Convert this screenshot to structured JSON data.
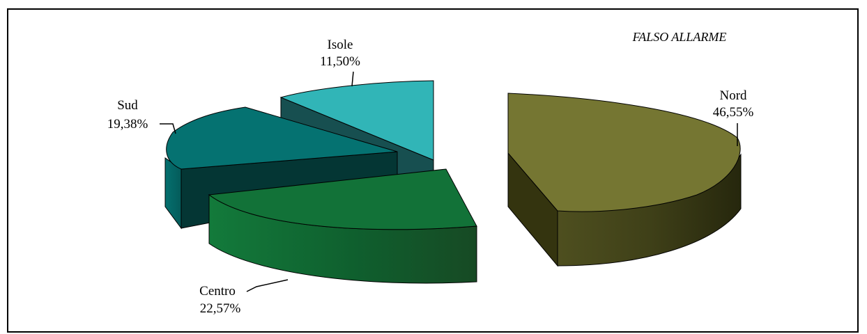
{
  "chart_data": {
    "type": "pie",
    "title": "FALSO ALLARME",
    "style": "3d-exploded",
    "slices": [
      {
        "label": "Nord",
        "value": 46.55,
        "value_label": "46,55%",
        "color": "#757632"
      },
      {
        "label": "Centro",
        "value": 22.57,
        "value_label": "22,57%",
        "color": "#127238"
      },
      {
        "label": "Sud",
        "value": 19.38,
        "value_label": "19,38%",
        "color": "#057271"
      },
      {
        "label": "Isole",
        "value": 11.5,
        "value_label": "11,50%",
        "color": "#31b5b7"
      }
    ]
  }
}
